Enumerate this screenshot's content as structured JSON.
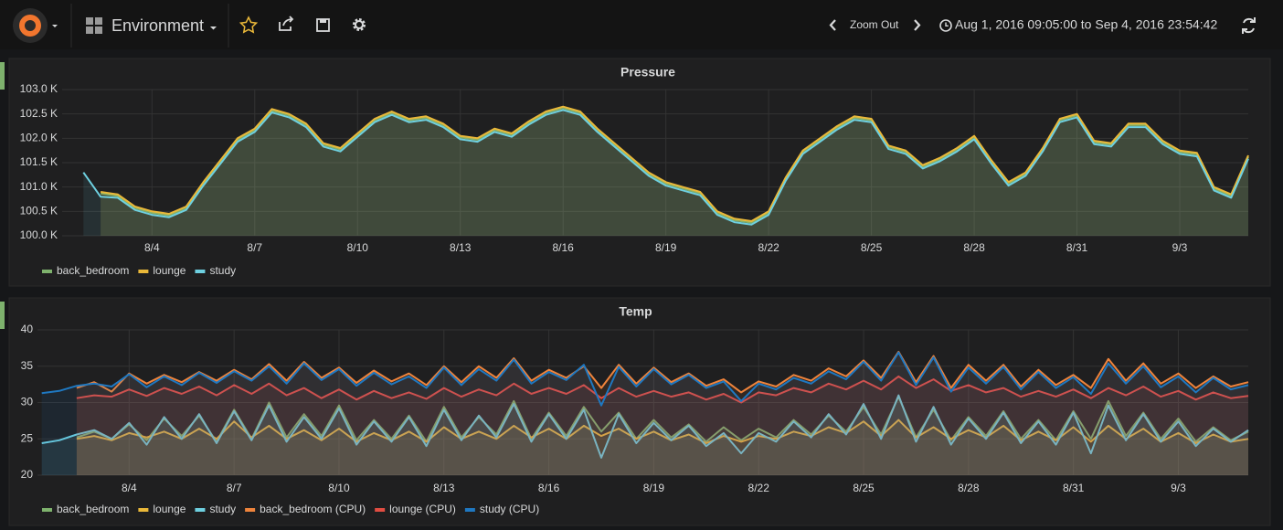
{
  "header": {
    "dashboard": "Environment",
    "zoom": "Zoom Out",
    "time_range": "Aug 1, 2016 09:05:00 to Sep 4, 2016 23:54:42"
  },
  "chart_data": [
    {
      "type": "line",
      "title": "Pressure",
      "grid": true,
      "fill": true,
      "x": [
        0.5,
        1,
        1.5,
        2,
        2.5,
        3,
        3.5,
        4,
        4.5,
        5,
        5.5,
        6,
        6.5,
        7,
        7.5,
        8,
        8.5,
        9,
        9.5,
        10,
        10.5,
        11,
        11.5,
        12,
        12.5,
        13,
        13.5,
        14,
        14.5,
        15,
        15.5,
        16,
        16.5,
        17,
        17.5,
        18,
        18.5,
        19,
        19.5,
        20,
        20.5,
        21,
        21.5,
        22,
        22.5,
        23,
        23.5,
        24,
        24.5,
        25,
        25.5,
        26,
        26.5,
        27,
        27.5,
        28,
        28.5,
        29,
        29.5,
        30,
        30.5,
        31,
        31.5,
        32,
        32.5,
        33,
        33.5,
        34,
        34.5,
        35
      ],
      "xlim": [
        0.378,
        35
      ],
      "xticks": [
        {
          "value": 3,
          "label": "8/4"
        },
        {
          "value": 6,
          "label": "8/7"
        },
        {
          "value": 9,
          "label": "8/10"
        },
        {
          "value": 12,
          "label": "8/13"
        },
        {
          "value": 15,
          "label": "8/16"
        },
        {
          "value": 18,
          "label": "8/19"
        },
        {
          "value": 21,
          "label": "8/22"
        },
        {
          "value": 24,
          "label": "8/25"
        },
        {
          "value": 27,
          "label": "8/28"
        },
        {
          "value": 30,
          "label": "8/31"
        },
        {
          "value": 33,
          "label": "9/3"
        }
      ],
      "ylim": [
        100,
        103
      ],
      "yticks": [
        {
          "value": 100,
          "label": "100.0 K"
        },
        {
          "value": 100.5,
          "label": "100.5 K"
        },
        {
          "value": 101,
          "label": "101.0 K"
        },
        {
          "value": 101.5,
          "label": "101.5 K"
        },
        {
          "value": 102,
          "label": "102.0 K"
        },
        {
          "value": 102.5,
          "label": "102.5 K"
        },
        {
          "value": 103,
          "label": "103.0 K"
        }
      ],
      "series": [
        {
          "name": "back_bedroom",
          "color": "#7eb26d",
          "values": [
            null,
            null,
            100.87,
            100.82,
            100.57,
            100.47,
            100.42,
            100.57,
            101.07,
            101.52,
            101.97,
            102.17,
            102.57,
            102.47,
            102.27,
            101.87,
            101.77,
            102.07,
            102.37,
            102.52,
            102.37,
            102.42,
            102.27,
            102.02,
            101.97,
            102.17,
            102.07,
            102.32,
            102.52,
            102.62,
            102.52,
            102.17,
            101.87,
            101.57,
            101.27,
            101.07,
            100.97,
            100.87,
            100.47,
            100.32,
            100.27,
            100.47,
            101.17,
            101.72,
            101.97,
            102.22,
            102.42,
            102.37,
            101.82,
            101.72,
            101.42,
            101.57,
            101.77,
            102.02,
            101.52,
            101.07,
            101.27,
            101.77,
            102.37,
            102.47,
            101.92,
            101.87,
            102.27,
            102.27,
            101.92,
            101.72,
            101.67,
            100.97,
            100.82,
            101.62
          ]
        },
        {
          "name": "lounge",
          "color": "#eab839",
          "values": [
            null,
            null,
            100.9,
            100.85,
            100.6,
            100.5,
            100.45,
            100.6,
            101.1,
            101.55,
            102.0,
            102.2,
            102.6,
            102.5,
            102.3,
            101.9,
            101.8,
            102.1,
            102.4,
            102.55,
            102.4,
            102.45,
            102.3,
            102.05,
            102.0,
            102.2,
            102.1,
            102.35,
            102.55,
            102.65,
            102.55,
            102.2,
            101.9,
            101.6,
            101.3,
            101.1,
            101.0,
            100.9,
            100.5,
            100.35,
            100.3,
            100.5,
            101.2,
            101.75,
            102.0,
            102.25,
            102.45,
            102.4,
            101.85,
            101.75,
            101.45,
            101.6,
            101.8,
            102.05,
            101.55,
            101.1,
            101.3,
            101.8,
            102.4,
            102.5,
            101.95,
            101.9,
            102.3,
            102.3,
            101.95,
            101.75,
            101.7,
            101.0,
            100.85,
            101.65
          ]
        },
        {
          "name": "study",
          "color": "#6ed0e0",
          "values": [
            null,
            101.3,
            100.8,
            100.78,
            100.53,
            100.43,
            100.38,
            100.53,
            101.03,
            101.48,
            101.93,
            102.13,
            102.53,
            102.43,
            102.23,
            101.83,
            101.73,
            102.03,
            102.33,
            102.48,
            102.33,
            102.38,
            102.23,
            101.98,
            101.93,
            102.13,
            102.03,
            102.28,
            102.48,
            102.58,
            102.48,
            102.13,
            101.83,
            101.53,
            101.23,
            101.03,
            100.93,
            100.83,
            100.43,
            100.28,
            100.23,
            100.43,
            101.13,
            101.68,
            101.93,
            102.18,
            102.38,
            102.33,
            101.78,
            101.68,
            101.38,
            101.53,
            101.73,
            101.98,
            101.48,
            101.03,
            101.23,
            101.73,
            102.33,
            102.43,
            101.88,
            101.83,
            102.23,
            102.23,
            101.88,
            101.68,
            101.63,
            100.93,
            100.78,
            101.58
          ]
        }
      ]
    },
    {
      "type": "line",
      "title": "Temp",
      "grid": true,
      "fill": true,
      "x": [
        0.5,
        1,
        1.5,
        2,
        2.5,
        3,
        3.5,
        4,
        4.5,
        5,
        5.5,
        6,
        6.5,
        7,
        7.5,
        8,
        8.5,
        9,
        9.5,
        10,
        10.5,
        11,
        11.5,
        12,
        12.5,
        13,
        13.5,
        14,
        14.5,
        15,
        15.5,
        16,
        16.5,
        17,
        17.5,
        18,
        18.5,
        19,
        19.5,
        20,
        20.5,
        21,
        21.5,
        22,
        22.5,
        23,
        23.5,
        24,
        24.5,
        25,
        25.5,
        26,
        26.5,
        27,
        27.5,
        28,
        28.5,
        29,
        29.5,
        30,
        30.5,
        31,
        31.5,
        32,
        32.5,
        33,
        33.5,
        34,
        34.5,
        35
      ],
      "xlim": [
        0.378,
        35
      ],
      "xticks": [
        {
          "value": 3,
          "label": "8/4"
        },
        {
          "value": 6,
          "label": "8/7"
        },
        {
          "value": 9,
          "label": "8/10"
        },
        {
          "value": 12,
          "label": "8/13"
        },
        {
          "value": 15,
          "label": "8/16"
        },
        {
          "value": 18,
          "label": "8/19"
        },
        {
          "value": 21,
          "label": "8/22"
        },
        {
          "value": 24,
          "label": "8/25"
        },
        {
          "value": 27,
          "label": "8/28"
        },
        {
          "value": 30,
          "label": "8/31"
        },
        {
          "value": 33,
          "label": "9/3"
        }
      ],
      "ylim": [
        20,
        40
      ],
      "yticks": [
        20,
        25,
        30,
        35,
        40
      ],
      "series": [
        {
          "name": "back_bedroom",
          "color": "#7eb26d",
          "values": [
            null,
            null,
            25.2,
            26.0,
            25.0,
            27.0,
            24.8,
            27.8,
            25.4,
            28.2,
            24.6,
            29.0,
            25.0,
            30.0,
            25.2,
            28.4,
            25.4,
            29.6,
            24.8,
            27.6,
            25.0,
            28.2,
            24.6,
            29.4,
            25.2,
            28.0,
            25.6,
            30.2,
            25.0,
            28.6,
            25.4,
            29.4,
            26.0,
            28.6,
            25.0,
            27.6,
            25.2,
            27.0,
            24.6,
            26.6,
            24.8,
            26.4,
            25.2,
            27.6,
            25.6,
            28.2,
            26.0,
            29.4,
            25.6,
            30.8,
            25.2,
            29.0,
            24.8,
            28.0,
            25.4,
            28.8,
            25.0,
            27.6,
            24.8,
            28.8,
            25.0,
            30.2,
            25.4,
            28.6,
            25.0,
            27.8,
            24.6,
            26.6,
            24.8,
            26.0
          ]
        },
        {
          "name": "lounge",
          "color": "#eab839",
          "values": [
            null,
            null,
            25.0,
            25.4,
            24.8,
            25.8,
            25.2,
            26.0,
            25.0,
            26.4,
            25.0,
            27.4,
            25.2,
            26.8,
            25.0,
            26.2,
            24.8,
            26.4,
            24.6,
            25.8,
            24.8,
            26.0,
            24.6,
            26.6,
            25.0,
            26.0,
            25.0,
            26.8,
            25.2,
            26.4,
            25.0,
            26.8,
            25.4,
            26.4,
            25.0,
            26.0,
            24.8,
            25.6,
            24.4,
            25.4,
            24.6,
            25.4,
            25.0,
            26.0,
            25.4,
            26.6,
            25.8,
            27.4,
            25.4,
            27.6,
            25.2,
            26.6,
            25.0,
            26.2,
            25.2,
            26.8,
            24.8,
            26.0,
            24.8,
            26.6,
            24.6,
            26.8,
            25.0,
            26.4,
            24.6,
            25.8,
            24.4,
            25.6,
            24.6,
            25.0
          ]
        },
        {
          "name": "study",
          "color": "#6ed0e0",
          "values": [
            24.4,
            24.8,
            25.6,
            26.2,
            25.0,
            27.2,
            24.2,
            28.0,
            25.0,
            28.4,
            24.4,
            28.8,
            24.8,
            29.6,
            24.6,
            28.0,
            25.0,
            29.2,
            24.2,
            27.4,
            24.6,
            28.0,
            24.0,
            29.0,
            24.8,
            28.2,
            25.2,
            29.8,
            24.6,
            28.4,
            25.0,
            29.0,
            22.4,
            28.4,
            24.4,
            27.2,
            24.8,
            26.8,
            24.0,
            25.8,
            23.0,
            25.8,
            24.6,
            27.4,
            25.2,
            28.4,
            25.6,
            29.8,
            25.0,
            31.0,
            24.6,
            29.4,
            24.2,
            27.8,
            25.0,
            28.6,
            24.4,
            27.4,
            24.2,
            28.6,
            23.0,
            29.6,
            24.8,
            28.4,
            24.6,
            27.4,
            24.0,
            26.4,
            24.6,
            26.2
          ]
        },
        {
          "name": "back_bedroom (CPU)",
          "color": "#ef843c",
          "values": [
            null,
            null,
            32.0,
            32.8,
            31.5,
            34.0,
            32.6,
            33.8,
            32.8,
            34.2,
            33.0,
            34.5,
            33.2,
            35.3,
            33.0,
            35.6,
            33.4,
            34.8,
            32.7,
            34.4,
            32.9,
            34.0,
            32.4,
            35.0,
            32.8,
            35.0,
            33.4,
            36.1,
            33.0,
            34.5,
            33.4,
            35.0,
            32.0,
            35.2,
            32.6,
            34.8,
            32.8,
            34.0,
            32.3,
            33.2,
            31.4,
            32.9,
            32.2,
            33.8,
            33.0,
            34.7,
            33.6,
            35.8,
            33.4,
            37.0,
            32.8,
            36.4,
            32.0,
            35.2,
            33.0,
            35.2,
            32.2,
            34.5,
            32.4,
            33.8,
            32.0,
            36.0,
            33.0,
            35.4,
            32.6,
            34.0,
            32.0,
            33.6,
            32.2,
            32.8
          ]
        },
        {
          "name": "lounge (CPU)",
          "color": "#e24d42",
          "values": [
            null,
            null,
            30.6,
            31.0,
            30.8,
            31.8,
            30.9,
            32.0,
            31.2,
            32.2,
            31.0,
            32.4,
            31.2,
            32.6,
            31.0,
            32.0,
            30.6,
            31.8,
            30.4,
            31.6,
            30.6,
            31.4,
            30.5,
            32.0,
            30.8,
            31.8,
            31.0,
            32.6,
            31.2,
            32.0,
            31.2,
            32.4,
            30.6,
            32.0,
            30.8,
            31.6,
            30.8,
            31.4,
            30.4,
            31.2,
            30.0,
            31.4,
            31.0,
            32.0,
            31.4,
            32.6,
            31.8,
            33.0,
            31.8,
            33.6,
            32.0,
            33.2,
            31.6,
            32.4,
            31.4,
            32.0,
            30.8,
            31.6,
            30.8,
            31.8,
            30.6,
            32.0,
            31.0,
            32.2,
            30.8,
            31.6,
            30.4,
            31.4,
            30.6,
            30.9
          ]
        },
        {
          "name": "study (CPU)",
          "color": "#1f78c1",
          "values": [
            31.3,
            31.6,
            32.3,
            32.6,
            32.2,
            33.9,
            32.1,
            33.6,
            32.4,
            34.1,
            32.7,
            34.3,
            33.0,
            35.0,
            32.6,
            35.4,
            33.1,
            34.6,
            32.3,
            34.1,
            32.5,
            33.6,
            32.0,
            34.8,
            32.4,
            34.6,
            33.0,
            35.9,
            32.6,
            34.2,
            33.1,
            35.2,
            29.6,
            34.9,
            32.2,
            34.6,
            32.5,
            33.8,
            32.0,
            32.9,
            30.2,
            32.6,
            31.8,
            33.4,
            32.6,
            34.3,
            33.2,
            35.6,
            33.0,
            36.9,
            32.4,
            36.2,
            31.5,
            34.8,
            32.6,
            34.9,
            31.8,
            34.2,
            32.0,
            33.5,
            31.2,
            35.4,
            32.6,
            35.0,
            32.1,
            33.6,
            31.4,
            33.4,
            31.8,
            32.4
          ]
        }
      ]
    }
  ]
}
